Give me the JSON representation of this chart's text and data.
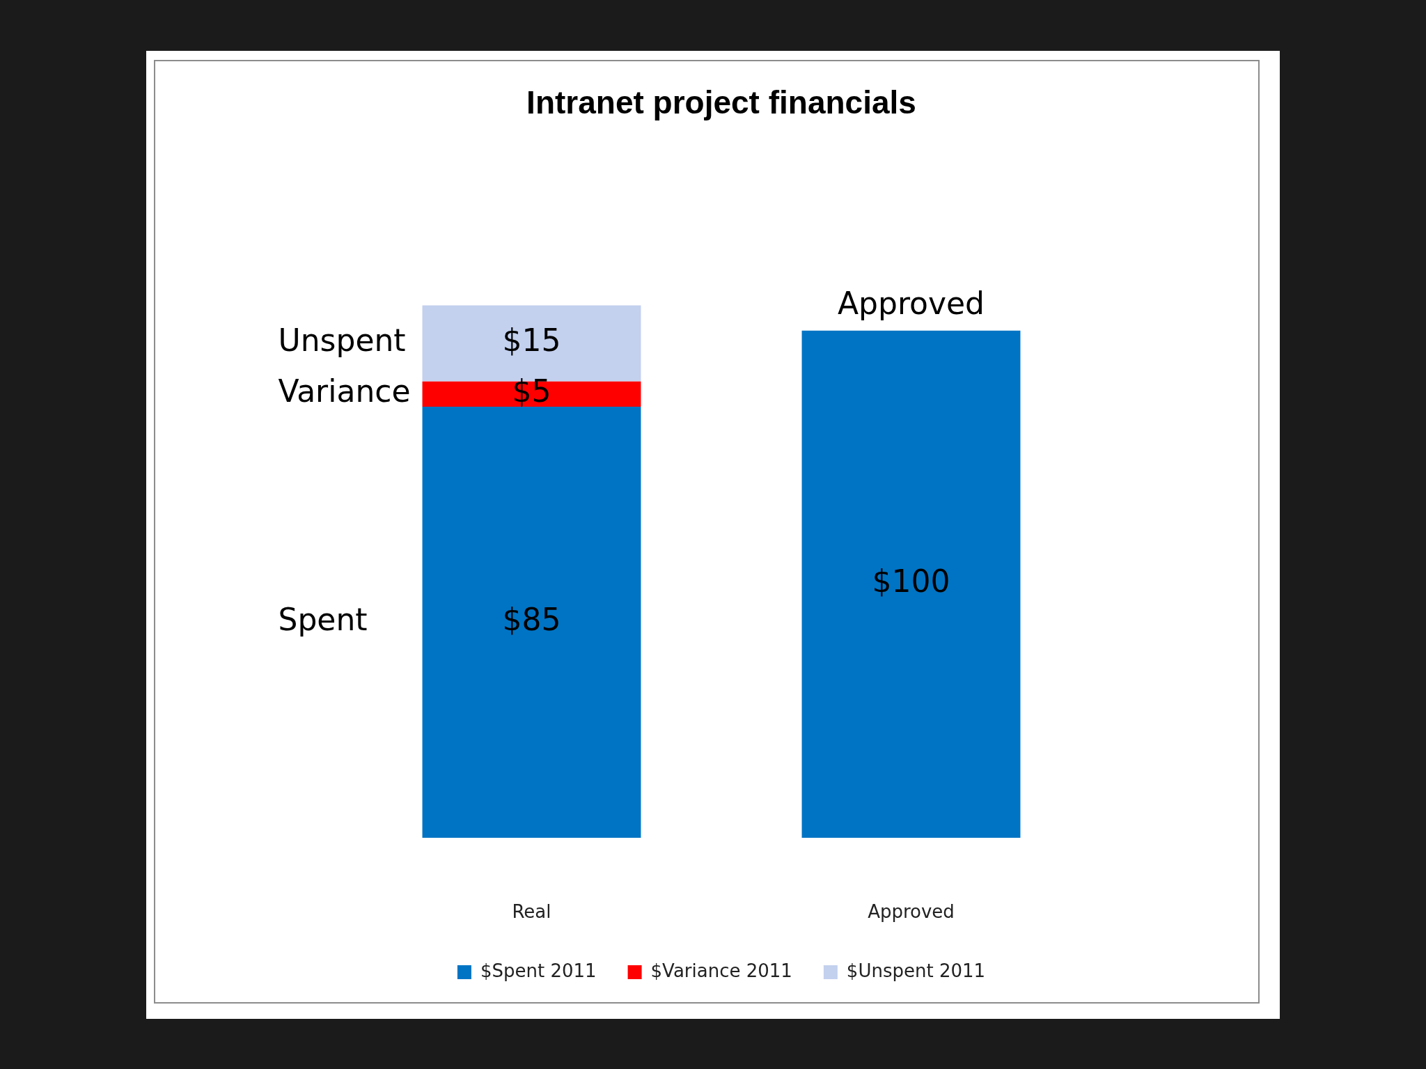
{
  "chart_data": {
    "type": "bar",
    "title": "Intranet project financials",
    "categories": [
      "Real",
      "Approved"
    ],
    "stacked": true,
    "series": [
      {
        "name": "$Spent 2011",
        "color": "#0074c4",
        "values": [
          85,
          100
        ],
        "value_labels": [
          "$85",
          "$100"
        ]
      },
      {
        "name": "$Variance 2011",
        "color": "#ff0000",
        "values": [
          5,
          null
        ],
        "value_labels": [
          "$5",
          null
        ]
      },
      {
        "name": "$Unspent 2011",
        "color": "#c3d0ee",
        "values": [
          15,
          null
        ],
        "value_labels": [
          "$15",
          null
        ]
      }
    ],
    "legend": "bottom",
    "annotations": [
      "Unspent",
      "Variance",
      "Spent",
      {
        "text": "Approved",
        "x": "Approved",
        "y": 100
      }
    ]
  }
}
